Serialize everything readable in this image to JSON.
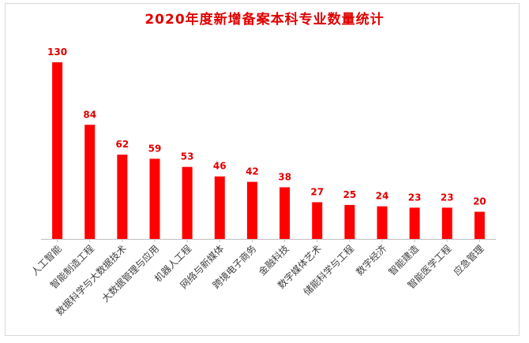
{
  "chart_data": {
    "type": "bar",
    "title": "2020年度新增备案本科专业数量统计",
    "xlabel": "",
    "ylabel": "",
    "ylim": [
      0,
      130
    ],
    "grid": false,
    "legend": "none",
    "bar_color": "#ff0000",
    "label_color": "#e00000",
    "categories": [
      "人工智能",
      "智能制造工程",
      "数据科学与大数据技术",
      "大数据管理与应用",
      "机器人工程",
      "网络与新媒体",
      "跨境电子商务",
      "金融科技",
      "数字媒体艺术",
      "储能科学与工程",
      "数字经济",
      "智能建造",
      "智能医学工程",
      "应急管理"
    ],
    "values": [
      130,
      84,
      62,
      59,
      53,
      46,
      42,
      38,
      27,
      25,
      24,
      23,
      23,
      20
    ]
  }
}
